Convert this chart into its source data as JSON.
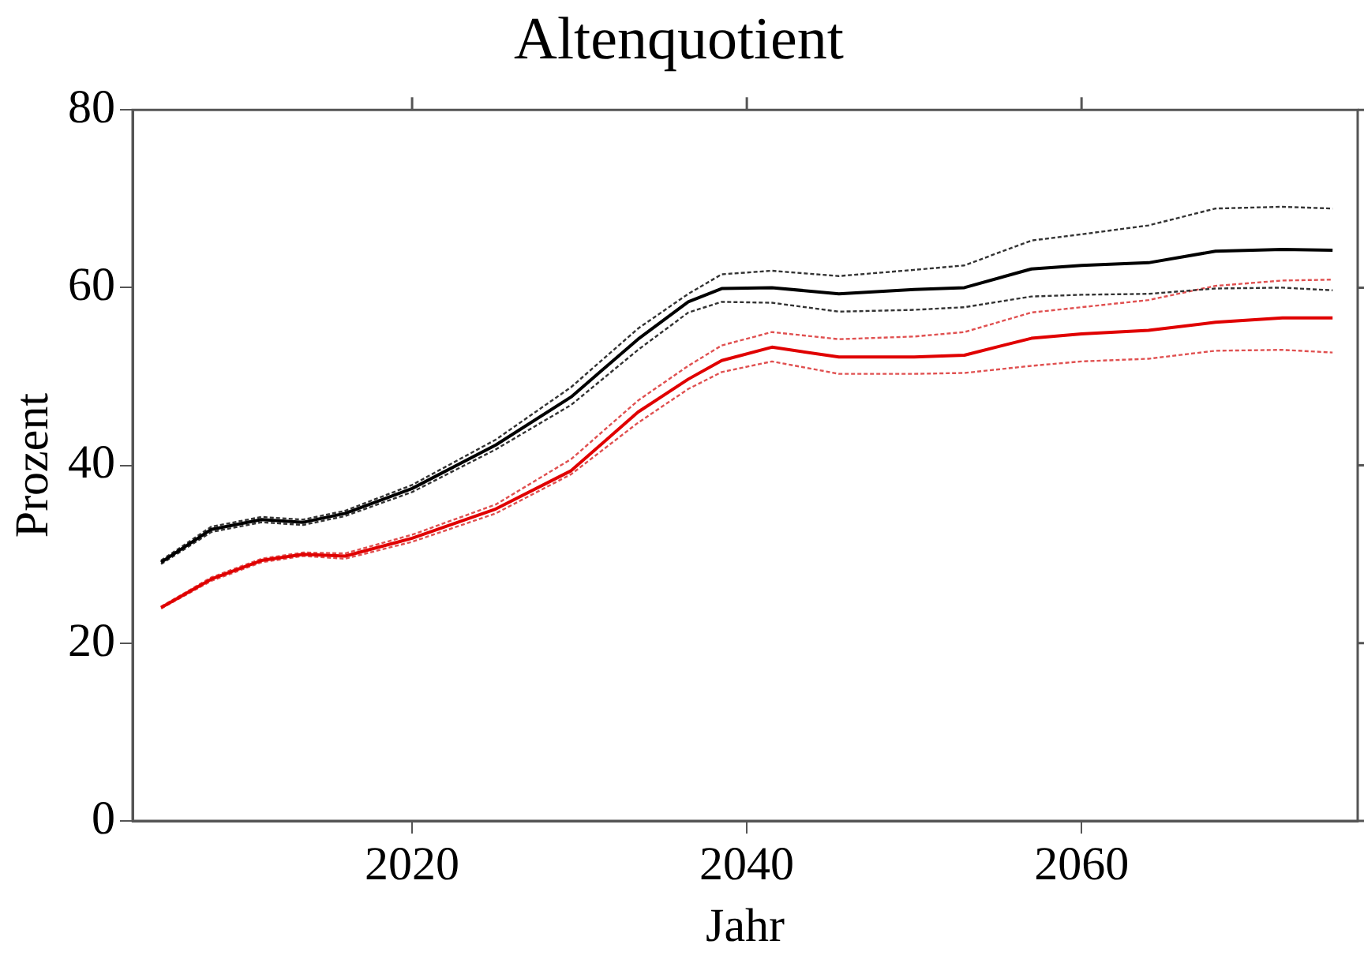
{
  "chart_data": {
    "type": "line",
    "title": "Altenquotient",
    "xlabel": "Jahr",
    "ylabel": "Prozent",
    "x": [
      2005,
      2008,
      2011,
      2013.5,
      2016,
      2020,
      2025,
      2029.5,
      2033.5,
      2036.5,
      2038.5,
      2041.5,
      2045.5,
      2050,
      2053,
      2057,
      2060,
      2064,
      2068,
      2072,
      2075
    ],
    "series": [
      {
        "color": "#000000",
        "line_style": "solid",
        "values": [
          29.1,
          32.8,
          33.9,
          33.6,
          34.6,
          37.4,
          42.3,
          47.7,
          54.2,
          58.4,
          59.9,
          60.0,
          59.3,
          59.8,
          60.0,
          62.1,
          62.5,
          62.8,
          64.1,
          64.3,
          64.2
        ]
      },
      {
        "color": "#333333",
        "line_style": "dotted",
        "values": [
          29.3,
          33.1,
          34.2,
          33.9,
          34.9,
          37.8,
          42.9,
          48.8,
          55.4,
          59.3,
          61.5,
          61.9,
          61.3,
          62.0,
          62.5,
          65.3,
          66.0,
          67.0,
          68.9,
          69.1,
          68.9
        ]
      },
      {
        "color": "#333333",
        "line_style": "dotted",
        "values": [
          28.9,
          32.5,
          33.6,
          33.3,
          34.3,
          37.0,
          41.8,
          46.8,
          53.0,
          57.2,
          58.4,
          58.3,
          57.3,
          57.5,
          57.8,
          59.0,
          59.2,
          59.3,
          59.9,
          60.0,
          59.7
        ]
      },
      {
        "color": "#e00000",
        "line_style": "solid",
        "values": [
          24.0,
          27.2,
          29.3,
          30.0,
          29.8,
          31.8,
          35.1,
          39.4,
          46.0,
          49.7,
          51.8,
          53.3,
          52.2,
          52.2,
          52.4,
          54.3,
          54.8,
          55.2,
          56.1,
          56.6,
          56.6
        ]
      },
      {
        "color": "#e05050",
        "line_style": "dotted",
        "values": [
          24.1,
          27.4,
          29.5,
          30.2,
          30.1,
          32.2,
          35.6,
          40.7,
          47.3,
          51.2,
          53.5,
          55.0,
          54.2,
          54.5,
          55.0,
          57.2,
          57.8,
          58.6,
          60.2,
          60.8,
          60.9
        ]
      },
      {
        "color": "#e05050",
        "line_style": "dotted",
        "values": [
          23.9,
          27.0,
          29.1,
          29.8,
          29.5,
          31.4,
          34.6,
          39.0,
          44.8,
          48.6,
          50.5,
          51.7,
          50.3,
          50.3,
          50.4,
          51.2,
          51.7,
          52.0,
          52.9,
          53.0,
          52.7
        ]
      }
    ],
    "xlim": [
      2003.3,
      2076.5
    ],
    "xticks": [
      2020,
      2040,
      2060
    ],
    "ylim": [
      0,
      80
    ],
    "yticks": [
      0,
      20,
      40,
      60,
      80
    ],
    "grid": false,
    "legend": false,
    "marker": "none"
  }
}
